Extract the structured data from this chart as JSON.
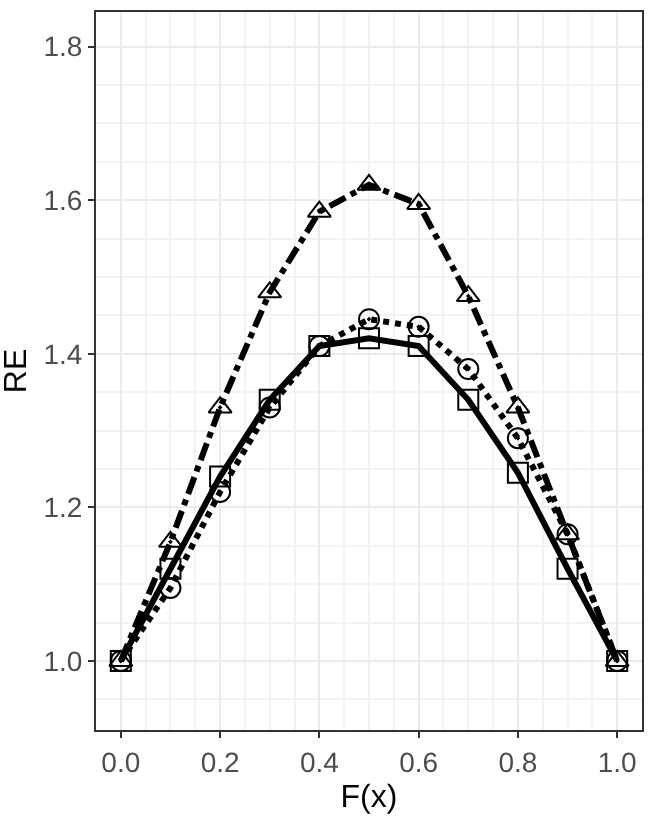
{
  "chart_data": {
    "type": "line",
    "xlabel": "F(x)",
    "ylabel": "RE",
    "x": [
      0,
      0.1,
      0.2,
      0.3,
      0.4,
      0.5,
      0.6,
      0.7,
      0.8,
      0.9,
      1.0
    ],
    "series": [
      {
        "color": "#000000",
        "marker": "square",
        "line_style": "solid",
        "values": [
          1.0,
          1.12,
          1.24,
          1.34,
          1.41,
          1.42,
          1.41,
          1.34,
          1.245,
          1.12,
          1.0
        ]
      },
      {
        "color": "#000000",
        "marker": "circle",
        "line_style": "dotted",
        "values": [
          1.0,
          1.095,
          1.22,
          1.33,
          1.41,
          1.445,
          1.435,
          1.38,
          1.29,
          1.165,
          1.0
        ]
      },
      {
        "color": "#000000",
        "marker": "triangle",
        "line_style": "dashdot",
        "values": [
          1.0,
          1.155,
          1.33,
          1.48,
          1.585,
          1.62,
          1.595,
          1.475,
          1.33,
          1.165,
          1.0
        ]
      }
    ],
    "xlim": [
      -0.05,
      1.05
    ],
    "xticks": [
      {
        "value": 0,
        "label": "0.0"
      },
      0.2,
      0.4,
      0.6,
      0.8,
      {
        "value": 1,
        "label": "1.0"
      }
    ],
    "ylim": [
      0.91,
      1.845
    ],
    "yticks": [
      {
        "value": 1,
        "label": "1.0"
      },
      1.2,
      1.4,
      1.6,
      1.8
    ],
    "grid": true
  }
}
